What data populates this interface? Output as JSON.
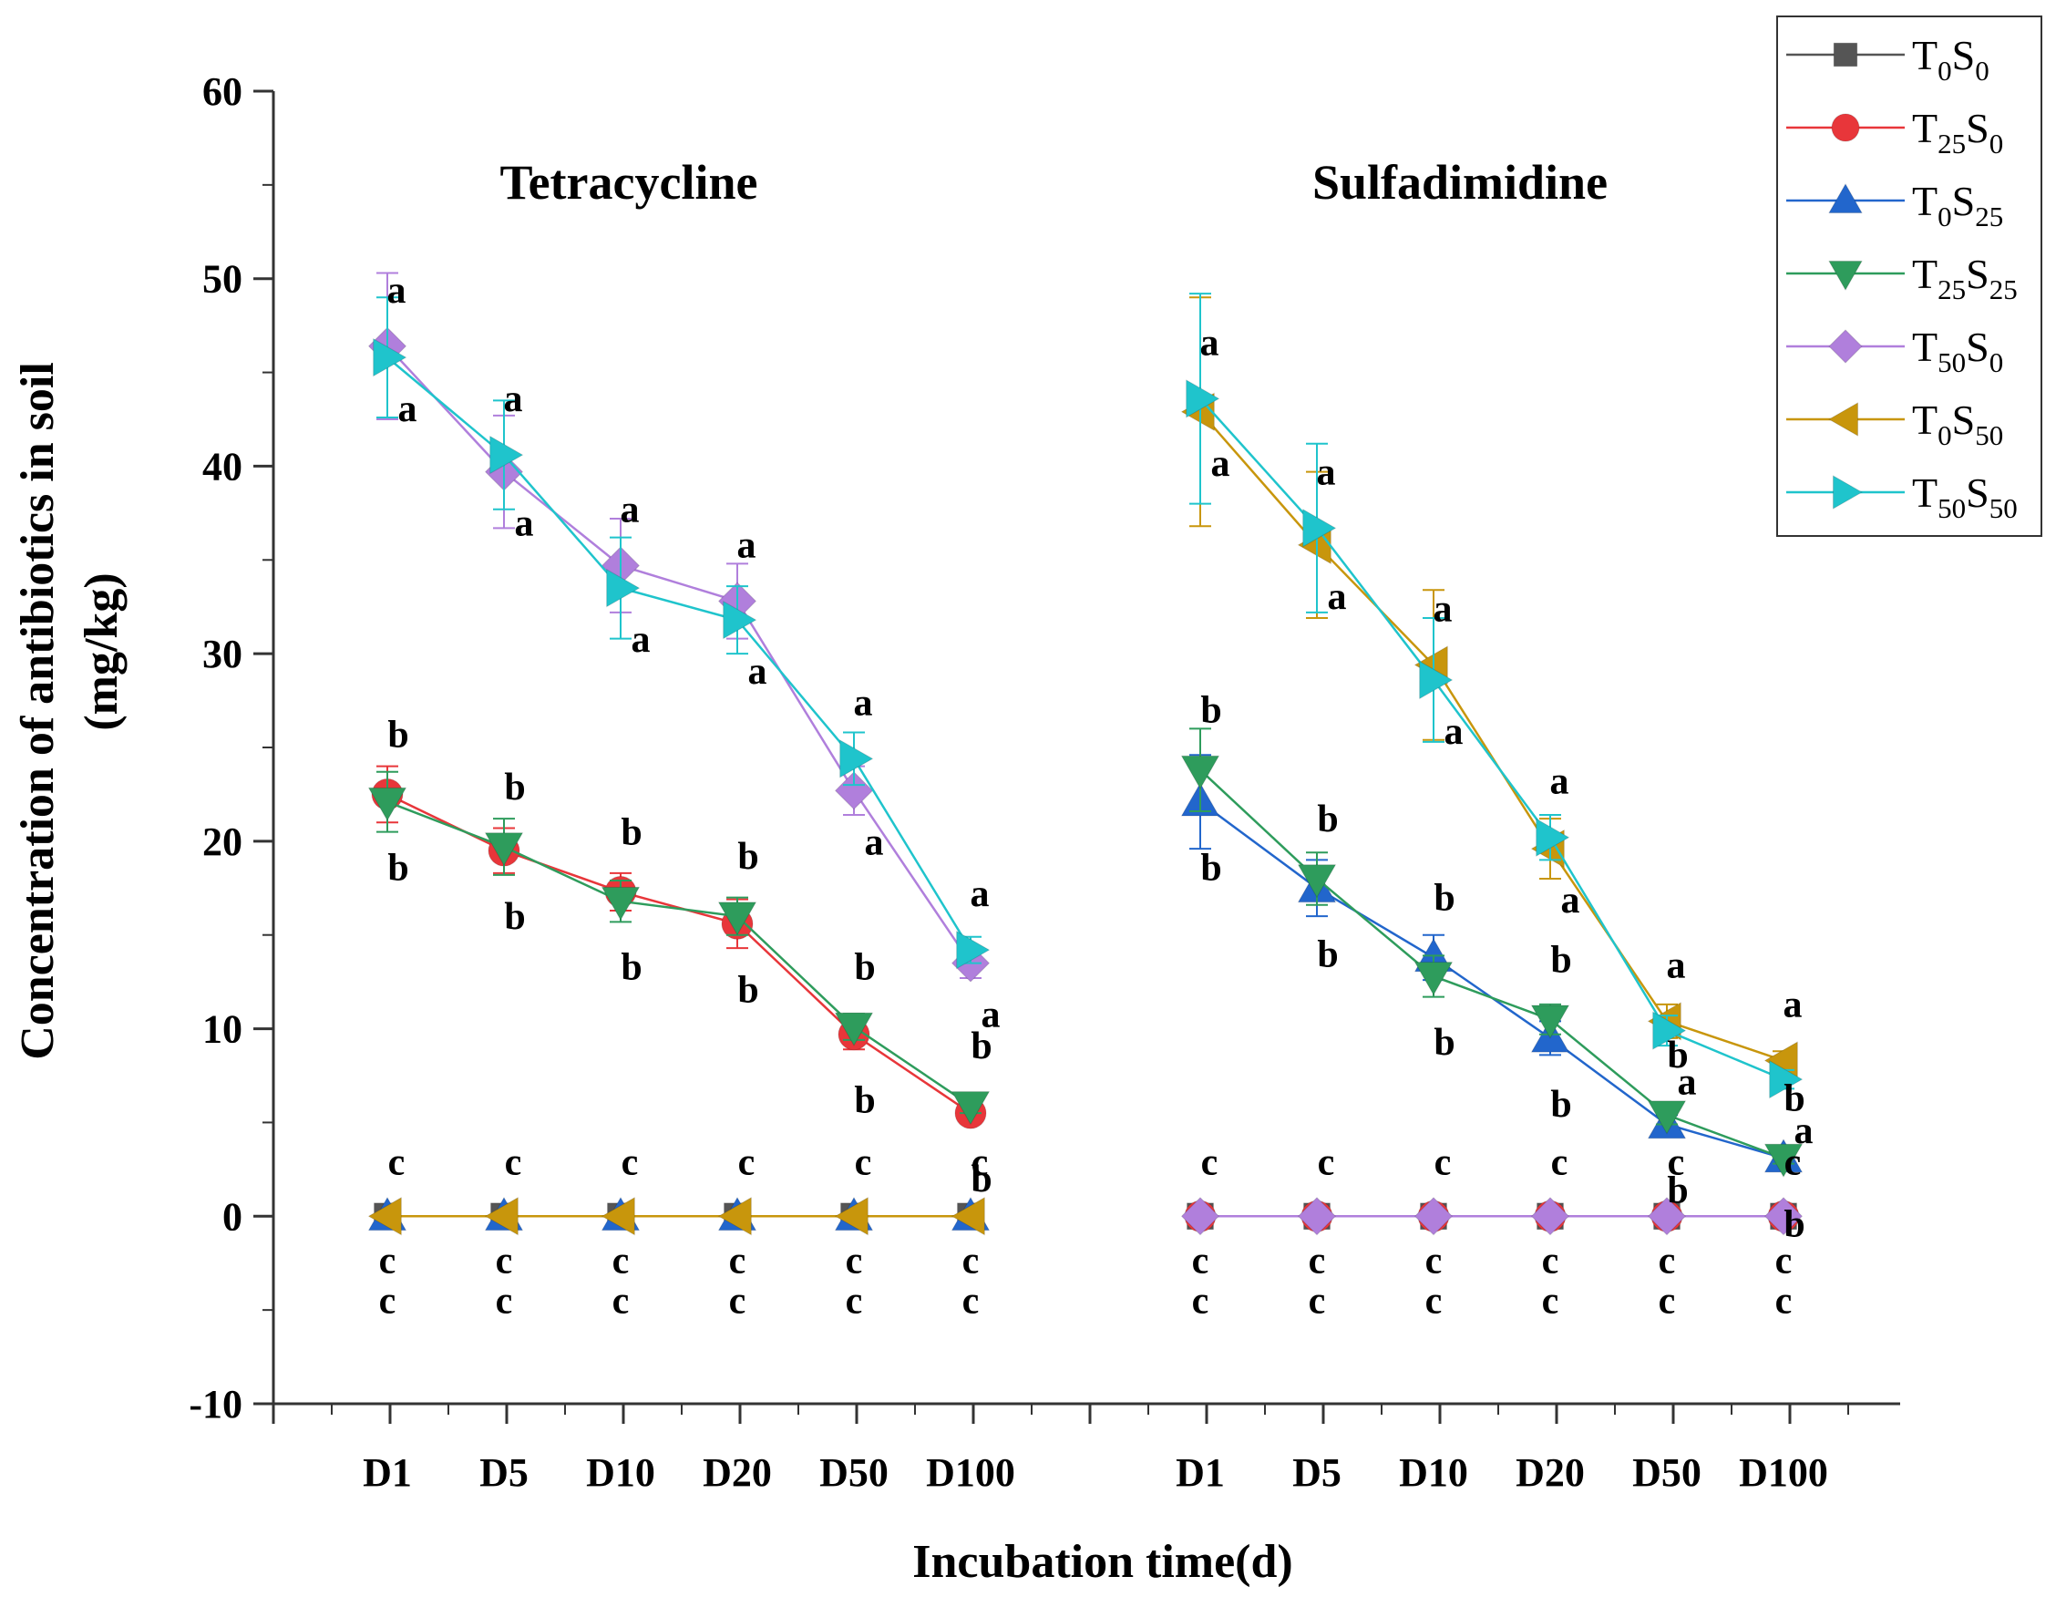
{
  "chart_data": {
    "type": "line",
    "ylabel_line1": "Concentration of antibiotics  in soil",
    "ylabel_line2": "(mg/kg)",
    "xlabel": "Incubation time(d)",
    "ylim": [
      -10,
      60
    ],
    "yticks": [
      -10,
      0,
      10,
      20,
      30,
      40,
      50,
      60
    ],
    "y_minor_step": 5,
    "categories": [
      "D1",
      "D5",
      "D10",
      "D20",
      "D50",
      "D100"
    ],
    "legend_position": "top-right",
    "legend": [
      {
        "key": "T0S0",
        "base1": "T",
        "sub1": "0",
        "base2": "S",
        "sub2": "0",
        "marker": "square",
        "color": "#555555"
      },
      {
        "key": "T25S0",
        "base1": "T",
        "sub1": "25",
        "base2": "S",
        "sub2": "0",
        "marker": "circle",
        "color": "#e8363a"
      },
      {
        "key": "T0S25",
        "base1": "T",
        "sub1": "0",
        "base2": "S",
        "sub2": "25",
        "marker": "triangle-up",
        "color": "#2266cc"
      },
      {
        "key": "T25S25",
        "base1": "T",
        "sub1": "25",
        "base2": "S",
        "sub2": "25",
        "marker": "triangle-down",
        "color": "#2e9c5c"
      },
      {
        "key": "T50S0",
        "base1": "T",
        "sub1": "50",
        "base2": "S",
        "sub2": "0",
        "marker": "diamond",
        "color": "#b07fdc"
      },
      {
        "key": "T0S50",
        "base1": "T",
        "sub1": "0",
        "base2": "S",
        "sub2": "50",
        "marker": "triangle-left",
        "color": "#c8960c"
      },
      {
        "key": "T50S50",
        "base1": "T",
        "sub1": "50",
        "base2": "S",
        "sub2": "50",
        "marker": "triangle-right",
        "color": "#1fc4cc"
      }
    ],
    "panels": [
      {
        "title": "Tetracycline",
        "series": [
          {
            "key": "T0S0",
            "values": [
              0,
              0,
              0,
              0,
              0,
              0
            ],
            "errors": [
              0,
              0,
              0,
              0,
              0,
              0
            ]
          },
          {
            "key": "T0S25",
            "values": [
              0,
              0,
              0,
              0,
              0,
              0
            ],
            "errors": [
              0,
              0,
              0,
              0,
              0,
              0
            ]
          },
          {
            "key": "T25S0",
            "values": [
              22.5,
              19.5,
              17.3,
              15.6,
              9.7,
              5.5
            ],
            "errors": [
              1.5,
              1.2,
              1.0,
              1.3,
              0.8,
              0.5
            ]
          },
          {
            "key": "T25S25",
            "values": [
              22.1,
              19.7,
              16.8,
              16.0,
              10.1,
              5.9
            ],
            "errors": [
              1.6,
              1.5,
              1.1,
              1.0,
              0.7,
              0.4
            ]
          },
          {
            "key": "T50S0",
            "values": [
              46.4,
              39.7,
              34.7,
              32.8,
              22.7,
              13.5
            ],
            "errors": [
              3.9,
              3.0,
              2.5,
              2.0,
              1.3,
              0.8
            ]
          },
          {
            "key": "T50S50",
            "values": [
              45.8,
              40.6,
              33.5,
              31.8,
              24.4,
              14.2
            ],
            "errors": [
              3.2,
              2.9,
              2.7,
              1.8,
              1.4,
              0.7
            ]
          },
          {
            "key": "T0S50",
            "values": [
              0,
              0,
              0,
              0,
              0,
              0
            ],
            "errors": [
              0,
              0,
              0,
              0,
              0,
              0
            ]
          }
        ],
        "sig_letters": [
          [
            "a",
            "a",
            "a",
            "a",
            "a",
            "a"
          ],
          [
            "a",
            "a",
            "a",
            "a",
            "a",
            "a"
          ],
          [
            "b",
            "b",
            "b",
            "b",
            "b",
            "b"
          ],
          [
            "b",
            "b",
            "b",
            "b",
            "b",
            "b"
          ],
          [
            "c",
            "c",
            "c",
            "c",
            "c",
            "c"
          ],
          [
            "c",
            "c",
            "c",
            "c",
            "c",
            "c"
          ],
          [
            "c",
            "c",
            "c",
            "c",
            "c",
            "c"
          ]
        ]
      },
      {
        "title": "Sulfadimidine",
        "series": [
          {
            "key": "T0S0",
            "values": [
              0,
              0,
              0,
              0,
              0,
              0
            ],
            "errors": [
              0,
              0,
              0,
              0,
              0,
              0
            ]
          },
          {
            "key": "T25S0",
            "values": [
              0,
              0,
              0,
              0,
              0,
              0
            ],
            "errors": [
              0,
              0,
              0,
              0,
              0,
              0
            ]
          },
          {
            "key": "T0S25",
            "values": [
              22.1,
              17.5,
              13.8,
              9.5,
              4.9,
              3.1
            ],
            "errors": [
              2.5,
              1.5,
              1.2,
              0.9,
              0.5,
              0.3
            ]
          },
          {
            "key": "T25S25",
            "values": [
              23.8,
              18.0,
              12.8,
              10.5,
              5.4,
              3.1
            ],
            "errors": [
              2.2,
              1.4,
              1.1,
              0.8,
              0.5,
              0.3
            ]
          },
          {
            "key": "T50S0",
            "values": [
              0,
              0,
              0,
              0,
              0,
              0
            ],
            "errors": [
              0,
              0,
              0,
              0,
              0,
              0
            ]
          },
          {
            "key": "T0S50",
            "values": [
              42.9,
              35.8,
              29.4,
              19.6,
              10.4,
              8.3
            ],
            "errors": [
              6.1,
              3.9,
              4.0,
              1.6,
              0.9,
              0.5
            ]
          },
          {
            "key": "T50S50",
            "values": [
              43.6,
              36.7,
              28.6,
              20.2,
              9.9,
              7.3
            ],
            "errors": [
              5.6,
              4.5,
              3.3,
              1.2,
              0.8,
              0.5
            ]
          }
        ],
        "sig_letters": [
          [
            "a",
            "a",
            "a",
            "a",
            "a",
            "a"
          ],
          [
            "a",
            "a",
            "a",
            "a",
            "a",
            "a"
          ],
          [
            "b",
            "b",
            "b",
            "b",
            "b",
            "b"
          ],
          [
            "b",
            "b",
            "b",
            "b",
            "b",
            "b"
          ],
          [
            "c",
            "c",
            "c",
            "c",
            "c",
            "c"
          ],
          [
            "c",
            "c",
            "c",
            "c",
            "c",
            "c"
          ],
          [
            "c",
            "c",
            "c",
            "c",
            "c",
            "c"
          ]
        ]
      }
    ]
  }
}
